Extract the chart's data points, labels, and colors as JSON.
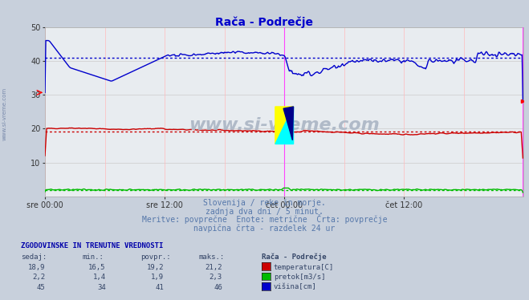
{
  "title": "Rača - Podrečje",
  "title_color": "#0000cc",
  "bg_color": "#c8d0dc",
  "plot_bg_color": "#e8ecf0",
  "grid_color_v": "#ffbbbb",
  "grid_color_h": "#cccccc",
  "xlim": [
    0,
    576
  ],
  "ylim": [
    0,
    50
  ],
  "yticks": [
    0,
    10,
    20,
    30,
    40,
    50
  ],
  "xtick_labels": [
    "sre 00:00",
    "sre 12:00",
    "čet 00:00",
    "čet 12:00"
  ],
  "xtick_positions": [
    0,
    144,
    288,
    432
  ],
  "vline_color": "#ff44ff",
  "avg_temp": 19.2,
  "avg_pretok": 1.9,
  "avg_visina": 41,
  "temp_color": "#cc0000",
  "pretok_color": "#00bb00",
  "visina_color": "#0000cc",
  "watermark": "www.si-vreme.com",
  "watermark_color": "#b0bac8",
  "subtitle1": "Slovenija / reke in morje.",
  "subtitle2": "zadnja dva dni / 5 minut.",
  "subtitle3": "Meritve: povprečne  Enote: metrične  Črta: povprečje",
  "subtitle4": "navpična črta - razdelek 24 ur",
  "subtitle_color": "#5577aa",
  "table_header": "ZGODOVINSKE IN TRENUTNE VREDNOSTI",
  "table_cols": [
    "sedaj:",
    "min.:",
    "povpr.:",
    "maks.:"
  ],
  "table_temp": [
    "18,9",
    "16,5",
    "19,2",
    "21,2"
  ],
  "table_pretok": [
    "2,2",
    "1,4",
    "1,9",
    "2,3"
  ],
  "table_visina": [
    "45",
    "34",
    "41",
    "46"
  ],
  "legend_label_temp": "temperatura[C]",
  "legend_label_pretok": "pretok[m3/s]",
  "legend_label_visina": "višina[cm]",
  "legend_station": "Rača - Podrečje"
}
